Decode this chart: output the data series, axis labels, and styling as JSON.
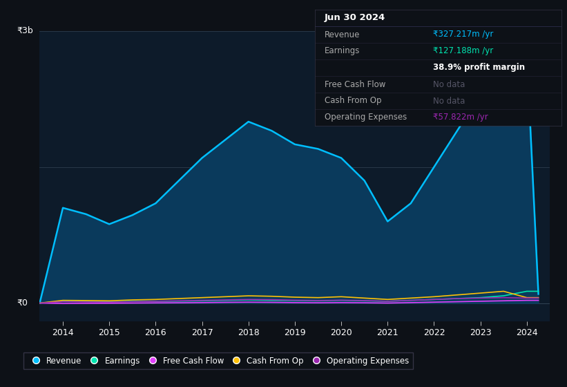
{
  "background_color": "#0d1117",
  "plot_bg_color": "#0d1b2a",
  "info_box": {
    "date": "Jun 30 2024",
    "revenue_label": "Revenue",
    "revenue_value": "₹327.217m /yr",
    "earnings_label": "Earnings",
    "earnings_value": "₹127.188m /yr",
    "profit_margin": "38.9% profit margin",
    "free_cash_flow_label": "Free Cash Flow",
    "free_cash_flow_value": "No data",
    "cash_from_op_label": "Cash From Op",
    "cash_from_op_value": "No data",
    "op_expenses_label": "Operating Expenses",
    "op_expenses_value": "₹57.822m /yr"
  },
  "ytick_label_3b": "₹3b",
  "ytick_label_0": "₹0",
  "years": [
    2013.5,
    2014,
    2014.5,
    2015,
    2015.5,
    2016,
    2016.5,
    2017,
    2017.5,
    2018,
    2018.5,
    2019,
    2019.5,
    2020,
    2020.5,
    2021,
    2021.5,
    2022,
    2022.5,
    2023,
    2023.5,
    2024,
    2024.25
  ],
  "revenue": [
    0,
    1050,
    980,
    870,
    970,
    1100,
    1350,
    1600,
    1800,
    2000,
    1900,
    1750,
    1700,
    1600,
    1350,
    900,
    1100,
    1500,
    1900,
    2300,
    2650,
    2750,
    100
  ],
  "earnings": [
    0,
    20,
    18,
    15,
    18,
    20,
    22,
    25,
    30,
    35,
    30,
    28,
    25,
    30,
    25,
    20,
    30,
    40,
    50,
    60,
    80,
    130,
    130
  ],
  "free_cash_flow": [
    0,
    -5,
    -3,
    -2,
    0,
    2,
    3,
    5,
    8,
    10,
    8,
    5,
    3,
    5,
    3,
    0,
    5,
    10,
    15,
    20,
    25,
    30,
    30
  ],
  "cash_from_op": [
    0,
    30,
    28,
    25,
    35,
    40,
    50,
    60,
    70,
    80,
    75,
    65,
    60,
    70,
    55,
    40,
    55,
    70,
    90,
    110,
    130,
    60,
    60
  ],
  "op_expenses": [
    0,
    15,
    12,
    10,
    15,
    20,
    25,
    30,
    35,
    40,
    38,
    32,
    28,
    32,
    28,
    20,
    30,
    40,
    50,
    55,
    60,
    55,
    55
  ],
  "revenue_color": "#00bfff",
  "earnings_color": "#00e5b0",
  "free_cash_flow_color": "#e040fb",
  "cash_from_op_color": "#ffc107",
  "op_expenses_color": "#9c27b0",
  "revenue_fill_color": "#0a3a5c",
  "x_tick_years": [
    2014,
    2015,
    2016,
    2017,
    2018,
    2019,
    2020,
    2021,
    2022,
    2023,
    2024
  ],
  "y_max": 3000,
  "y_min": -200,
  "x_min": 2013.5,
  "x_max": 2024.5
}
